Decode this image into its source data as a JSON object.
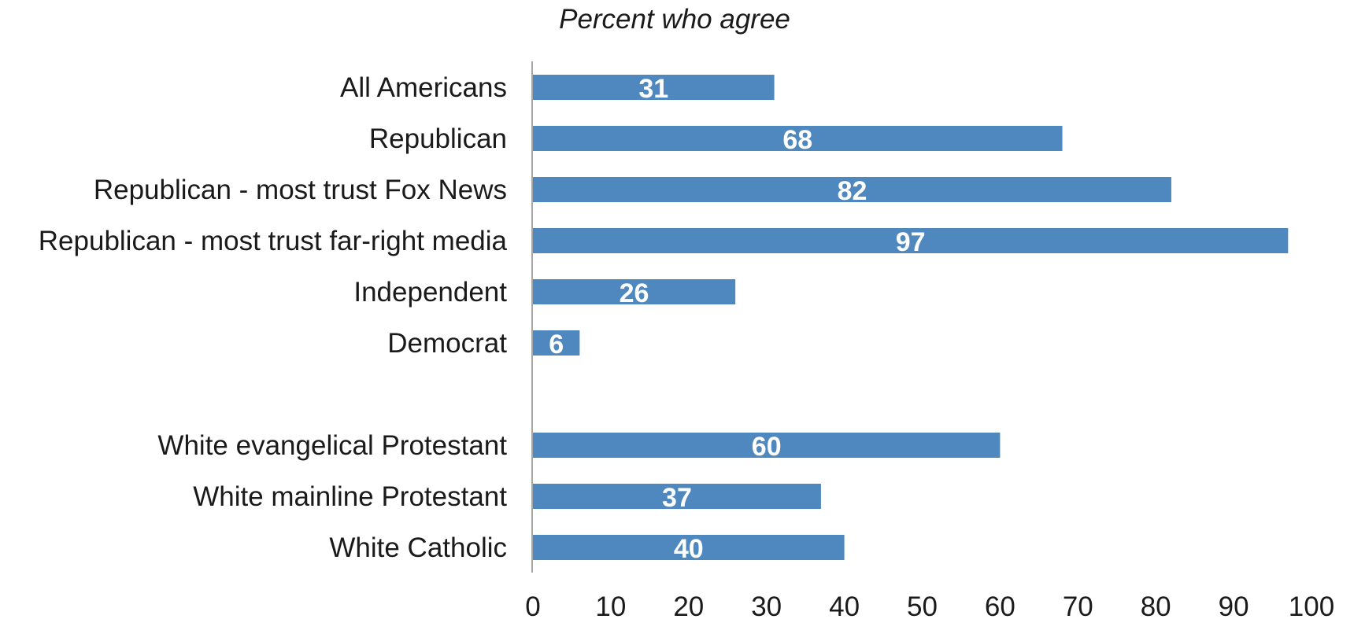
{
  "chart_data": {
    "type": "bar",
    "orientation": "horizontal",
    "title": "Percent who agree",
    "xlabel": "",
    "ylabel": "",
    "xlim": [
      0,
      100
    ],
    "ticks": [
      0,
      10,
      20,
      30,
      40,
      50,
      60,
      70,
      80,
      90,
      100
    ],
    "grid": false,
    "bar_color": "#4f88bf",
    "categories": [
      "All Americans",
      "Republican",
      "Republican - most trust Fox News",
      "Republican - most trust far-right media",
      "Independent",
      "Democrat",
      "",
      "White evangelical Protestant",
      "White mainline Protestant",
      "White Catholic"
    ],
    "values": [
      31,
      68,
      82,
      97,
      26,
      6,
      null,
      60,
      37,
      40
    ]
  }
}
